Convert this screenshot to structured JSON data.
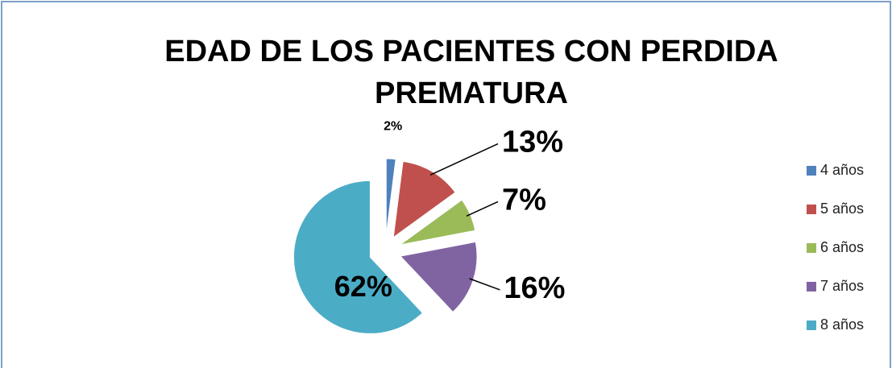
{
  "chart_data": {
    "type": "pie",
    "title": "EDAD DE LOS PACIENTES CON PERDIDA PREMATURA",
    "categories": [
      "4 años",
      "5 años",
      "6 años",
      "7 años",
      "8 años"
    ],
    "values": [
      2,
      13,
      7,
      16,
      62
    ],
    "value_labels": [
      "2%",
      "13%",
      "7%",
      "16%",
      "62%"
    ],
    "colors": [
      "#4f81bd",
      "#c0504d",
      "#9bbb59",
      "#8064a2",
      "#4bacc6"
    ],
    "legend": "right"
  }
}
